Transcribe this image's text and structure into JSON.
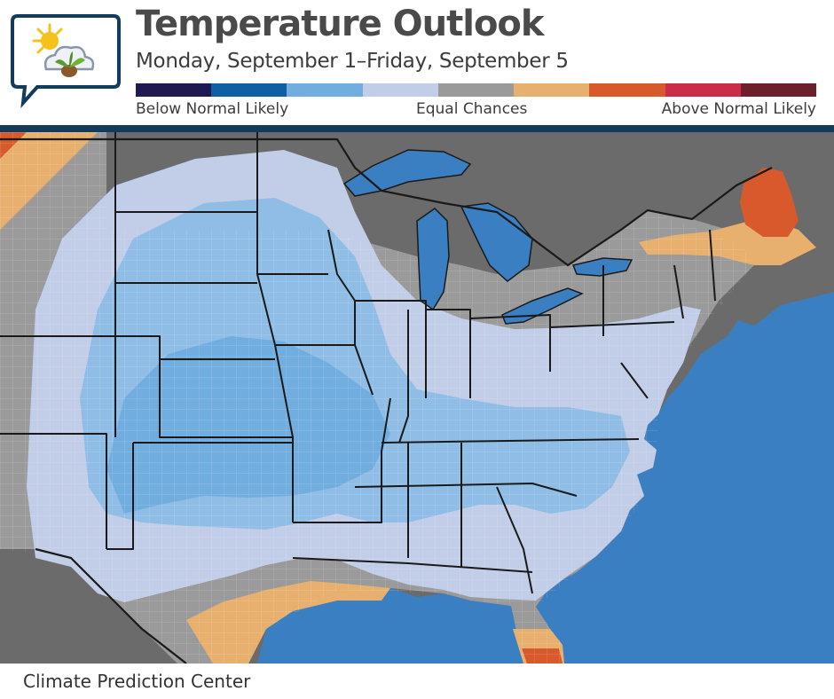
{
  "header": {
    "logo_icon": "weather-sprout-logo-icon",
    "title": "Temperature Outlook",
    "subtitle": "Monday, September 1–Friday, September 5"
  },
  "legend": {
    "colors": [
      "#1f1a52",
      "#0f5fa4",
      "#72ade0",
      "#c2cde8",
      "#9a9a9a",
      "#e8b06e",
      "#d85a2c",
      "#cc2c48",
      "#6e1f2c"
    ],
    "label_below": "Below Normal Likely",
    "label_equal": "Equal Chances",
    "label_above": "Above Normal Likely"
  },
  "map": {
    "region": "Eastern and Central United States",
    "categories": [
      {
        "category": "Above Normal Likely",
        "color": "#e8b06e",
        "areas": [
          "Gulf Coast of Texas and Louisiana",
          "South Florida",
          "Northern Maine and New Hampshire",
          "Far northwest corner"
        ]
      },
      {
        "category": "Above Normal Likely (stronger)",
        "color": "#d85a2c",
        "areas": [
          "Northern Maine"
        ]
      },
      {
        "category": "Equal Chances",
        "color": "#9a9a9a",
        "areas": [
          "Great Lakes and Northeast",
          "Western High Plains",
          "Southern Texas",
          "North Florida"
        ]
      },
      {
        "category": "Below Normal Likely",
        "color": "#c2cde8",
        "areas": [
          "Central US",
          "Ohio Valley",
          "Southeast",
          "Mid-Atlantic"
        ]
      },
      {
        "category": "Below Normal Likely (stronger)",
        "color": "#8fbde6",
        "areas": [
          "Southern Plains",
          "Upper Midwest",
          "Tennessee Valley",
          "Carolinas"
        ]
      }
    ],
    "colors": {
      "water": "#3a7fc1",
      "outside": "#6b6b6b",
      "state_border": "#1a1a1a"
    }
  },
  "footer": {
    "credit": "Climate Prediction Center"
  }
}
